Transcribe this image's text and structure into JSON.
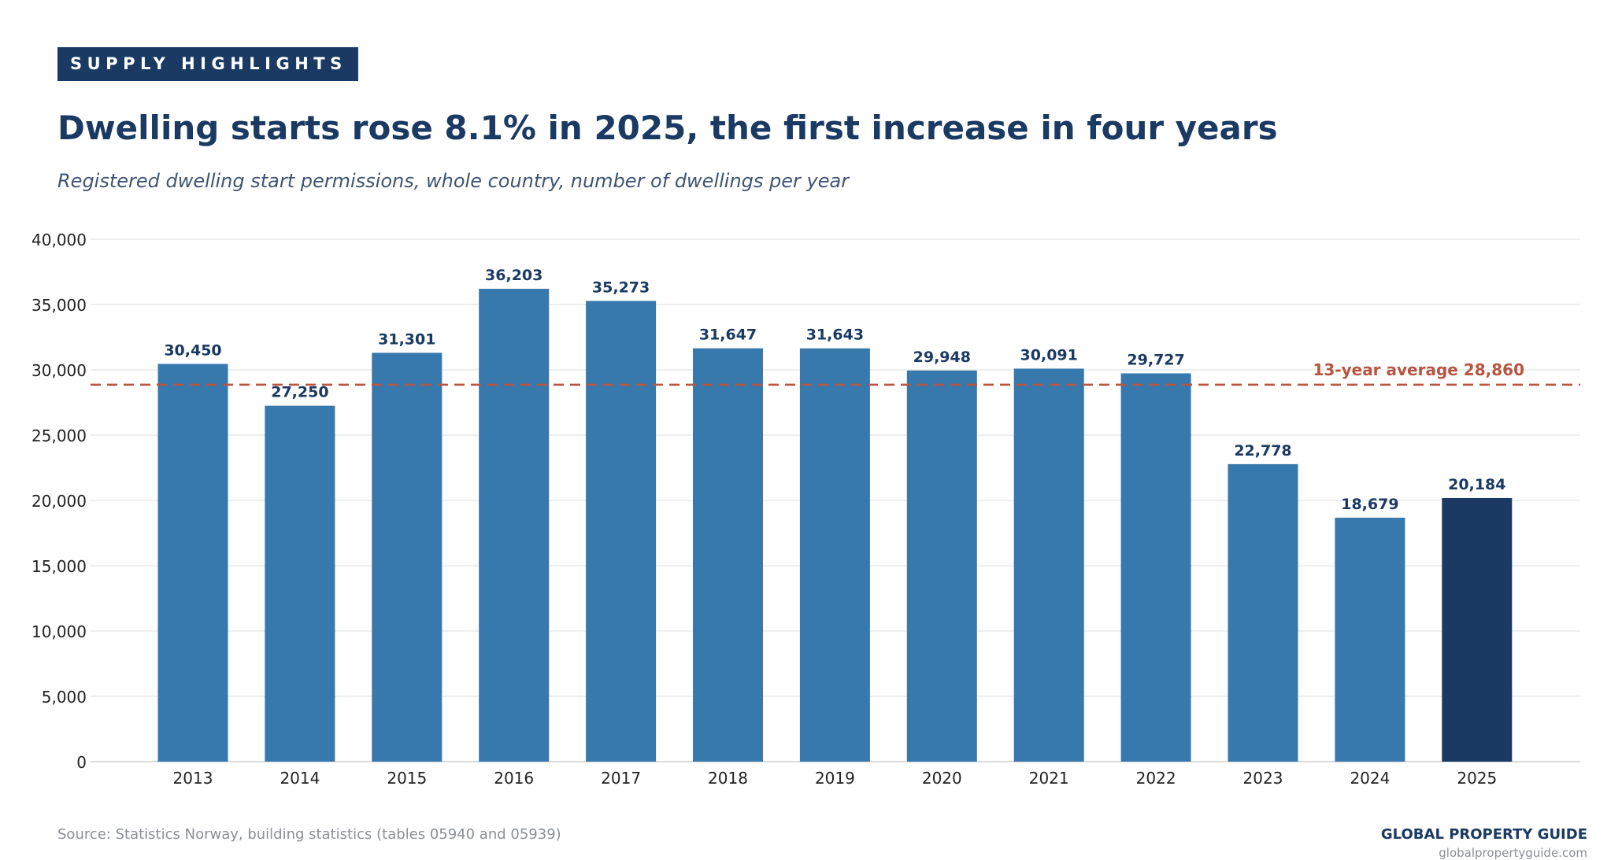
{
  "header": {
    "badge": "SUPPLY HIGHLIGHTS",
    "title": "Dwelling starts rose 8.1% in 2025, the first increase in four years",
    "subtitle": "Registered dwelling start permissions, whole country, number of dwellings per year"
  },
  "chart_data": {
    "type": "bar",
    "title": "Dwelling starts rose 8.1% in 2025, the first increase in four years",
    "subtitle": "Registered dwelling start permissions, whole country, number of dwellings per year",
    "xlabel": "",
    "ylabel": "",
    "categories": [
      "2013",
      "2014",
      "2015",
      "2016",
      "2017",
      "2018",
      "2019",
      "2020",
      "2021",
      "2022",
      "2023",
      "2024",
      "2025"
    ],
    "values": [
      30450,
      27250,
      31301,
      36203,
      35273,
      31647,
      31643,
      29948,
      30091,
      29727,
      22778,
      18679,
      20184
    ],
    "data_labels": [
      "30,450",
      "27,250",
      "31,301",
      "36,203",
      "35,273",
      "31,647",
      "31,643",
      "29,948",
      "30,091",
      "29,727",
      "22,778",
      "18,679",
      "20,184"
    ],
    "highlight_category": "2025",
    "ylim": [
      0,
      40000
    ],
    "y_ticks": [
      0,
      5000,
      10000,
      15000,
      20000,
      25000,
      30000,
      35000,
      40000
    ],
    "y_tick_labels": [
      "0",
      "5,000",
      "10,000",
      "15,000",
      "20,000",
      "25,000",
      "30,000",
      "35,000",
      "40,000"
    ],
    "reference_line": {
      "value": 28860,
      "label": "13-year average 28,860",
      "style": "dashed"
    },
    "grid": "horizontal",
    "legend": "none",
    "colors": {
      "bar": "#3778ad",
      "highlight_bar": "#1a3a63",
      "data_label": "#1a3a63",
      "reference_line": "#b85440",
      "grid": "#e3e3e3",
      "axis_text": "#222222"
    }
  },
  "footer": {
    "source": "Source: Statistics Norway, building statistics (tables 05940 and 05939)",
    "brand": "GLOBAL PROPERTY GUIDE",
    "url": "globalpropertyguide.com"
  }
}
